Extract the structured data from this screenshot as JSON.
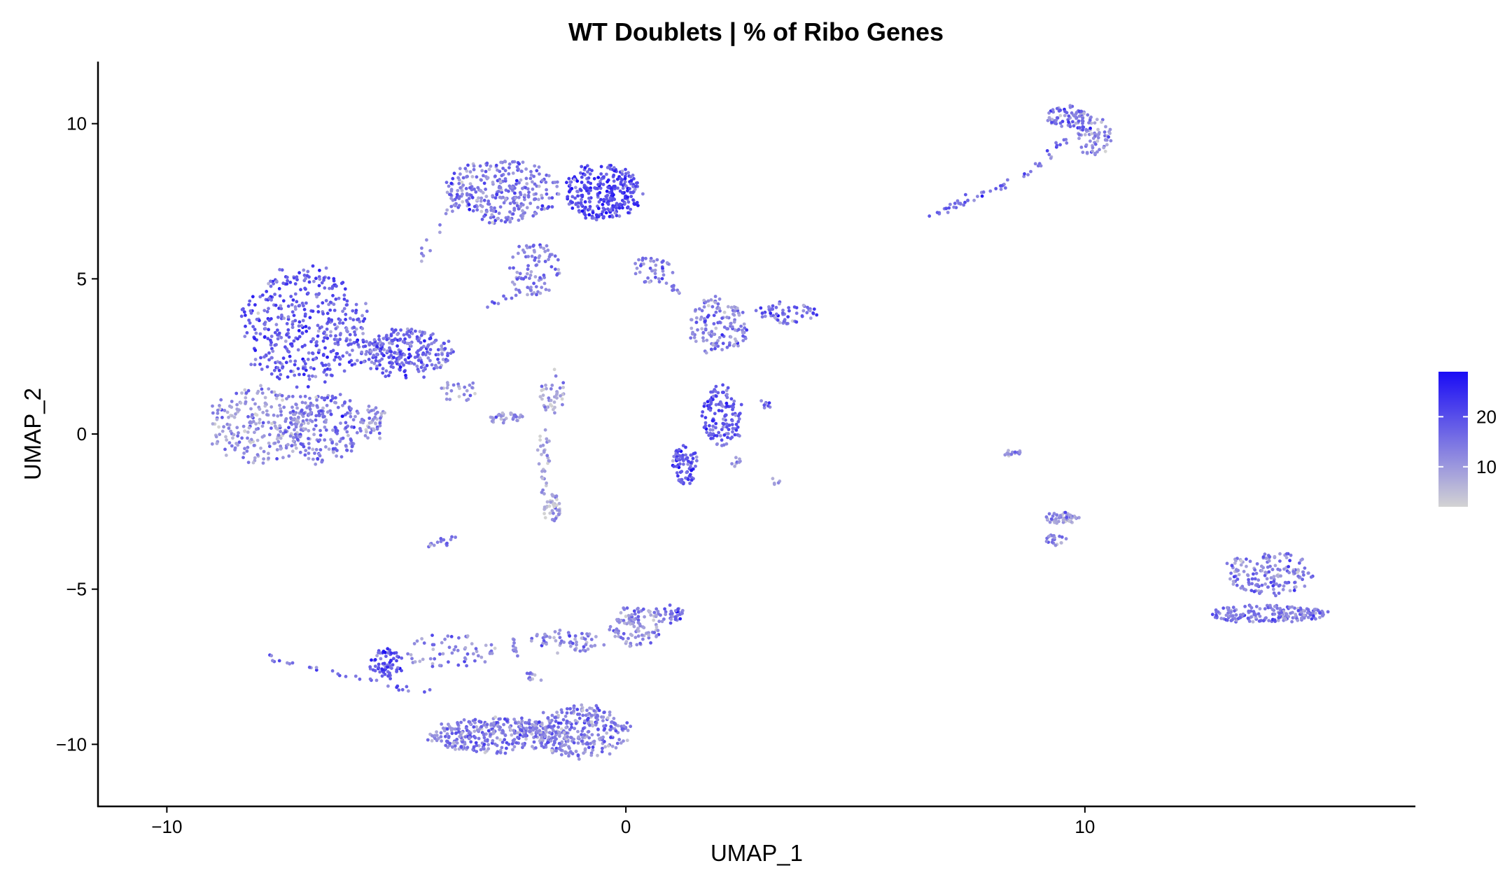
{
  "chart_data": {
    "type": "scatter",
    "title": "WT Doublets | % of Ribo Genes",
    "xlabel": "UMAP_1",
    "ylabel": "UMAP_2",
    "xlim": [
      -11.5,
      17.2
    ],
    "ylim": [
      -12,
      12
    ],
    "xticks": [
      -10,
      0,
      10
    ],
    "xtick_labels": [
      "−10",
      "0",
      "10"
    ],
    "yticks": [
      -10,
      -5,
      0,
      5,
      10
    ],
    "ytick_labels": [
      "−10",
      "−5",
      "0",
      "5",
      "10"
    ],
    "grid": false,
    "legend": {
      "placement": "right",
      "type": "colorbar",
      "low_color": "#d3d3d3",
      "high_color": "#1a0cf5",
      "range": [
        2,
        29
      ],
      "ticks": [
        10,
        20
      ],
      "tick_labels": [
        "10",
        "20"
      ]
    },
    "clusters": [
      {
        "cx": -7.0,
        "cy": 3.5,
        "rx": 1.5,
        "ry": 2.1,
        "n": 420,
        "mean": 18
      },
      {
        "cx": -4.8,
        "cy": 2.6,
        "rx": 1.1,
        "ry": 0.9,
        "n": 260,
        "mean": 17
      },
      {
        "cx": -8.0,
        "cy": 0.3,
        "rx": 1.2,
        "ry": 1.3,
        "n": 230,
        "mean": 10
      },
      {
        "cx": -6.6,
        "cy": 0.2,
        "rx": 0.9,
        "ry": 1.2,
        "n": 200,
        "mean": 14
      },
      {
        "cx": -5.5,
        "cy": 0.4,
        "rx": 0.4,
        "ry": 0.6,
        "n": 50,
        "mean": 11
      },
      {
        "cx": -2.7,
        "cy": 7.8,
        "rx": 1.3,
        "ry": 1.1,
        "n": 300,
        "mean": 14
      },
      {
        "cx": -0.5,
        "cy": 7.8,
        "rx": 0.9,
        "ry": 1.0,
        "n": 280,
        "mean": 21
      },
      {
        "cx": -2.0,
        "cy": 5.3,
        "rx": 0.6,
        "ry": 0.9,
        "n": 80,
        "mean": 13
      },
      {
        "cx": 0.6,
        "cy": 5.3,
        "rx": 0.5,
        "ry": 0.5,
        "n": 40,
        "mean": 14
      },
      {
        "cx": -1.6,
        "cy": 1.3,
        "rx": 0.3,
        "ry": 0.8,
        "n": 40,
        "mean": 8
      },
      {
        "cx": -1.6,
        "cy": -2.4,
        "rx": 0.2,
        "ry": 0.5,
        "n": 40,
        "mean": 7
      },
      {
        "cx": -1.8,
        "cy": -0.8,
        "rx": 0.15,
        "ry": 1.2,
        "n": 30,
        "mean": 9
      },
      {
        "cx": -2.6,
        "cy": 0.5,
        "rx": 0.4,
        "ry": 0.2,
        "n": 30,
        "mean": 10
      },
      {
        "cx": -3.6,
        "cy": 1.4,
        "rx": 0.5,
        "ry": 0.4,
        "n": 25,
        "mean": 11
      },
      {
        "cx": 2.0,
        "cy": 3.5,
        "rx": 0.7,
        "ry": 1.0,
        "n": 140,
        "mean": 13
      },
      {
        "cx": 2.1,
        "cy": 0.6,
        "rx": 0.5,
        "ry": 1.1,
        "n": 130,
        "mean": 18
      },
      {
        "cx": 1.3,
        "cy": -1.0,
        "rx": 0.3,
        "ry": 0.7,
        "n": 80,
        "mean": 19
      },
      {
        "cx": 3.5,
        "cy": 3.9,
        "rx": 0.7,
        "ry": 0.4,
        "n": 60,
        "mean": 15
      },
      {
        "cx": -3.8,
        "cy": -7.0,
        "rx": 1.1,
        "ry": 0.6,
        "n": 60,
        "mean": 12
      },
      {
        "cx": -2.8,
        "cy": -9.7,
        "rx": 1.6,
        "ry": 0.6,
        "n": 320,
        "mean": 14
      },
      {
        "cx": -1.0,
        "cy": -9.6,
        "rx": 1.2,
        "ry": 0.9,
        "n": 300,
        "mean": 13
      },
      {
        "cx": -1.3,
        "cy": -6.7,
        "rx": 0.9,
        "ry": 0.4,
        "n": 60,
        "mean": 12
      },
      {
        "cx": 0.2,
        "cy": -6.2,
        "rx": 0.6,
        "ry": 0.7,
        "n": 100,
        "mean": 12
      },
      {
        "cx": 0.9,
        "cy": -5.8,
        "rx": 0.4,
        "ry": 0.3,
        "n": 40,
        "mean": 15
      },
      {
        "cx": -5.2,
        "cy": -7.4,
        "rx": 0.4,
        "ry": 0.5,
        "n": 70,
        "mean": 20
      },
      {
        "cx": 9.6,
        "cy": 10.2,
        "rx": 0.5,
        "ry": 0.4,
        "n": 70,
        "mean": 15
      },
      {
        "cx": 10.2,
        "cy": 9.6,
        "rx": 0.4,
        "ry": 0.7,
        "n": 70,
        "mean": 13
      },
      {
        "cx": 9.5,
        "cy": -2.7,
        "rx": 0.4,
        "ry": 0.2,
        "n": 50,
        "mean": 10
      },
      {
        "cx": 9.4,
        "cy": -3.4,
        "rx": 0.3,
        "ry": 0.2,
        "n": 20,
        "mean": 13
      },
      {
        "cx": 8.4,
        "cy": -0.6,
        "rx": 0.25,
        "ry": 0.12,
        "n": 15,
        "mean": 10
      },
      {
        "cx": 14.0,
        "cy": -4.5,
        "rx": 1.0,
        "ry": 0.8,
        "n": 160,
        "mean": 13
      },
      {
        "cx": 14.0,
        "cy": -5.8,
        "rx": 1.4,
        "ry": 0.3,
        "n": 180,
        "mean": 14
      }
    ],
    "strands": [
      {
        "x0": -7.9,
        "y0": -7.2,
        "x1": -4.2,
        "y1": -8.4,
        "n": 30,
        "mean": 16
      },
      {
        "x0": -2.5,
        "y0": -6.5,
        "x1": -2.0,
        "y1": -8.0,
        "n": 20,
        "mean": 12
      },
      {
        "x0": -4.3,
        "y0": -3.6,
        "x1": -3.7,
        "y1": -3.4,
        "n": 15,
        "mean": 12
      },
      {
        "x0": 6.6,
        "y0": 7.0,
        "x1": 8.8,
        "y1": 8.4,
        "n": 40,
        "mean": 17
      },
      {
        "x0": 9.0,
        "y0": 8.6,
        "x1": 9.6,
        "y1": 9.6,
        "n": 15,
        "mean": 15
      },
      {
        "x0": -4.5,
        "y0": 5.5,
        "x1": -3.5,
        "y1": 8.2,
        "n": 20,
        "mean": 12
      },
      {
        "x0": 0.8,
        "y0": 4.9,
        "x1": 1.2,
        "y1": 4.5,
        "n": 10,
        "mean": 14
      },
      {
        "x0": 3.0,
        "y0": 0.9,
        "x1": 3.1,
        "y1": 1.0,
        "n": 8,
        "mean": 16
      },
      {
        "x0": 3.2,
        "y0": -1.5,
        "x1": 3.4,
        "y1": -1.6,
        "n": 5,
        "mean": 12
      },
      {
        "x0": 2.3,
        "y0": -0.9,
        "x1": 2.6,
        "y1": -1.0,
        "n": 8,
        "mean": 13
      },
      {
        "x0": -2.9,
        "y0": 4.2,
        "x1": -2.0,
        "y1": 4.7,
        "n": 15,
        "mean": 15
      }
    ]
  }
}
